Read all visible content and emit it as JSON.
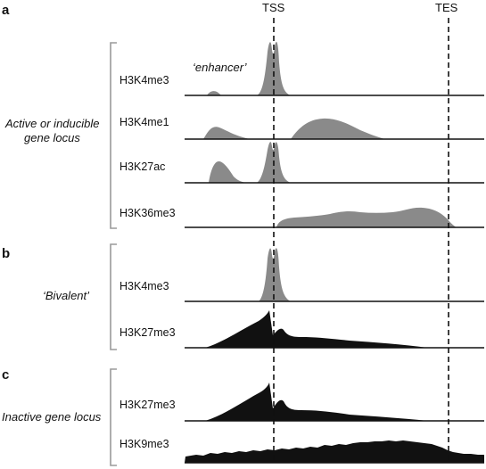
{
  "markers": [
    {
      "id": "tss",
      "label": "TSS"
    },
    {
      "id": "tes",
      "label": "TES"
    }
  ],
  "annotation": "‘enhancer’",
  "colors": {
    "grey": "#8a8a8a",
    "black": "#111111",
    "line": "#111111",
    "bracket": "#9a9a9a"
  },
  "panels": [
    {
      "letter": "a",
      "group_label": [
        "Active or inducible",
        "gene locus"
      ],
      "tracks": [
        {
          "label": "H3K4me3",
          "color": "grey"
        },
        {
          "label": "H3K4me1",
          "color": "grey"
        },
        {
          "label": "H3K27ac",
          "color": "grey"
        },
        {
          "label": "H3K36me3",
          "color": "grey"
        }
      ]
    },
    {
      "letter": "b",
      "group_label": [
        "‘Bivalent’"
      ],
      "tracks": [
        {
          "label": "H3K4me3",
          "color": "grey"
        },
        {
          "label": "H3K27me3",
          "color": "black"
        }
      ]
    },
    {
      "letter": "c",
      "group_label": [
        "Inactive gene locus"
      ],
      "tracks": [
        {
          "label": "H3K27me3",
          "color": "black"
        },
        {
          "label": "H3K9me3",
          "color": "black"
        }
      ]
    }
  ]
}
